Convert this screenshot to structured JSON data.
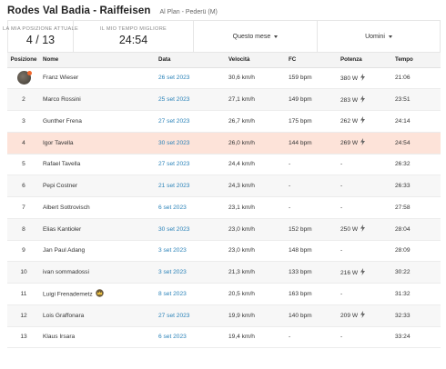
{
  "header": {
    "title": "Rodes Val Badia - Raiffeisen",
    "subtitle": "Al Plan - Pederü (M)"
  },
  "stats": {
    "position_label": "LA MIA POSIZIONE ATTUALE",
    "position_value": "4 / 13",
    "best_time_label": "IL MIO TEMPO MIGLIORE",
    "best_time_value": "24:54"
  },
  "filters": {
    "period": "Questo mese",
    "gender": "Uomini"
  },
  "columns": [
    "Posizione",
    "Nome",
    "Data",
    "Velocità",
    "FC",
    "Potenza",
    "Tempo"
  ],
  "rows": [
    {
      "pos": "",
      "name": "Franz Wieser",
      "date": "26 set 2023",
      "speed": "30,6 km/h",
      "hr": "159 bpm",
      "power": "380 W",
      "time": "21:06",
      "avatar": true,
      "measured": true
    },
    {
      "pos": "2",
      "name": "Marco Rossini",
      "date": "25 set 2023",
      "speed": "27,1 km/h",
      "hr": "149 bpm",
      "power": "283 W",
      "time": "23:51",
      "measured": true
    },
    {
      "pos": "3",
      "name": "Gunther Frena",
      "date": "27 set 2023",
      "speed": "26,7 km/h",
      "hr": "175 bpm",
      "power": "262 W",
      "time": "24:14",
      "measured": true
    },
    {
      "pos": "4",
      "name": "Igor Tavella",
      "date": "30 set 2023",
      "speed": "26,0 km/h",
      "hr": "144 bpm",
      "power": "269 W",
      "time": "24:54",
      "me": true,
      "measured": true
    },
    {
      "pos": "5",
      "name": "Rafael Tavella",
      "date": "27 set 2023",
      "speed": "24,4 km/h",
      "hr": "-",
      "power": "-",
      "time": "26:32"
    },
    {
      "pos": "6",
      "name": "Pepi Costner",
      "date": "21 set 2023",
      "speed": "24,3 km/h",
      "hr": "-",
      "power": "-",
      "time": "26:33"
    },
    {
      "pos": "7",
      "name": "Albert Sottrovisch",
      "date": "6 set 2023",
      "speed": "23,1 km/h",
      "hr": "-",
      "power": "-",
      "time": "27:58"
    },
    {
      "pos": "8",
      "name": "Elias Kantioler",
      "date": "30 set 2023",
      "speed": "23,0 km/h",
      "hr": "152 bpm",
      "power": "250 W",
      "time": "28:04",
      "measured": true
    },
    {
      "pos": "9",
      "name": "Jan Paul Adang",
      "date": "3 set 2023",
      "speed": "23,0 km/h",
      "hr": "148 bpm",
      "power": "-",
      "time": "28:09"
    },
    {
      "pos": "10",
      "name": "ivan sommadossi",
      "date": "3 set 2023",
      "speed": "21,3 km/h",
      "hr": "133 bpm",
      "power": "216 W",
      "time": "30:22",
      "measured": true
    },
    {
      "pos": "11",
      "name": "Luigi Frenademetz",
      "date": "8 set 2023",
      "speed": "20,5 km/h",
      "hr": "163 bpm",
      "power": "-",
      "time": "31:32",
      "crown": true
    },
    {
      "pos": "12",
      "name": "Lois Graffonara",
      "date": "27 set 2023",
      "speed": "19,9 km/h",
      "hr": "140 bpm",
      "power": "209 W",
      "time": "32:33",
      "measured": true
    },
    {
      "pos": "13",
      "name": "Klaus Irsara",
      "date": "6 set 2023",
      "speed": "19,4 km/h",
      "hr": "-",
      "power": "-",
      "time": "33:24"
    }
  ],
  "colors": {
    "accent_link": "#2a82b8",
    "highlight_row": "#fde3d9",
    "brand_orange": "#f0662b"
  },
  "icons": {
    "power_measured": "lightning-bolt-icon",
    "crown": "crown-icon",
    "dropdown": "chevron-down-icon"
  }
}
